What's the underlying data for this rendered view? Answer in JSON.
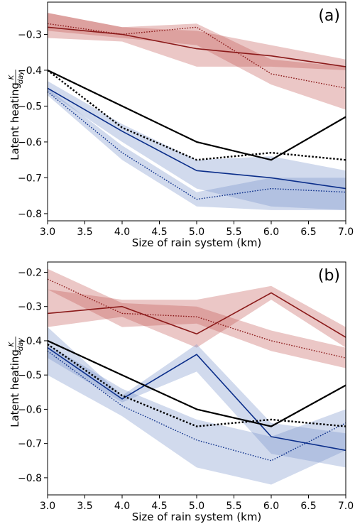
{
  "chart_data": [
    {
      "type": "line",
      "panel_label": "(a)",
      "xlabel": "Size of rain system (km)",
      "ylabel": "Latent heating",
      "ylabel_unit_num": "K",
      "ylabel_unit_den": "day",
      "xlim": [
        3.0,
        7.0
      ],
      "ylim": [
        -0.82,
        -0.21
      ],
      "xticks": [
        "3.0",
        "3.5",
        "4.0",
        "4.5",
        "5.0",
        "5.5",
        "6.0",
        "6.5",
        "7.0"
      ],
      "yticks": [
        -0.8,
        -0.7,
        -0.6,
        -0.5,
        -0.4,
        -0.3
      ],
      "ytick_labels": [
        "−0.8",
        "−0.7",
        "−0.6",
        "−0.5",
        "−0.4",
        "−0.3"
      ],
      "x": [
        3,
        4,
        5,
        6,
        7
      ],
      "series": [
        {
          "color": "#8b1a1a",
          "dash": "solid",
          "width": 1.6,
          "values": [
            -0.28,
            -0.3,
            -0.34,
            -0.36,
            -0.39
          ],
          "band_lower": [
            -0.31,
            -0.32,
            -0.39,
            -0.39,
            -0.4
          ],
          "band_upper": [
            -0.24,
            -0.28,
            -0.29,
            -0.33,
            -0.37
          ],
          "band_color": "#c0504d"
        },
        {
          "color": "#8b1a1a",
          "dash": "dotted",
          "width": 1.4,
          "values": [
            -0.27,
            -0.3,
            -0.28,
            -0.41,
            -0.45
          ],
          "band_lower": [
            -0.29,
            -0.31,
            -0.33,
            -0.44,
            -0.51
          ],
          "band_upper": [
            -0.24,
            -0.28,
            -0.27,
            -0.37,
            -0.39
          ],
          "band_color": "#c0504d"
        },
        {
          "color": "#0b2e8a",
          "dash": "solid",
          "width": 1.6,
          "values": [
            -0.45,
            -0.57,
            -0.68,
            -0.7,
            -0.73
          ],
          "band_lower": [
            -0.46,
            -0.6,
            -0.73,
            -0.78,
            -0.79
          ],
          "band_upper": [
            -0.43,
            -0.55,
            -0.65,
            -0.64,
            -0.68
          ],
          "band_color": "#6f8cc7"
        },
        {
          "color": "#0b2e8a",
          "dash": "dotted",
          "width": 1.4,
          "values": [
            -0.46,
            -0.63,
            -0.76,
            -0.73,
            -0.74
          ],
          "band_lower": [
            -0.47,
            -0.65,
            -0.78,
            -0.79,
            -0.79
          ],
          "band_upper": [
            -0.45,
            -0.61,
            -0.74,
            -0.7,
            -0.7
          ],
          "band_color": "#6f8cc7"
        },
        {
          "color": "#000000",
          "dash": "solid",
          "width": 2.2,
          "values": [
            -0.4,
            -0.5,
            -0.6,
            -0.65,
            -0.53
          ]
        },
        {
          "color": "#000000",
          "dash": "dotted",
          "width": 2.4,
          "values": [
            -0.4,
            -0.56,
            -0.65,
            -0.63,
            -0.65
          ]
        }
      ]
    },
    {
      "type": "line",
      "panel_label": "(b)",
      "xlabel": "Size of rain system (km)",
      "ylabel": "Latent heating",
      "ylabel_unit_num": "K",
      "ylabel_unit_den": "day",
      "xlim": [
        3.0,
        7.0
      ],
      "ylim": [
        -0.85,
        -0.17
      ],
      "xticks": [
        "3.0",
        "3.5",
        "4.0",
        "4.5",
        "5.0",
        "5.5",
        "6.0",
        "6.5",
        "7.0"
      ],
      "yticks": [
        -0.8,
        -0.7,
        -0.6,
        -0.5,
        -0.4,
        -0.3,
        -0.2
      ],
      "ytick_labels": [
        "−0.8",
        "−0.7",
        "−0.6",
        "−0.5",
        "−0.4",
        "−0.3",
        "−0.2"
      ],
      "x": [
        3,
        4,
        5,
        6,
        7
      ],
      "series": [
        {
          "color": "#8b1a1a",
          "dash": "solid",
          "width": 1.6,
          "values": [
            -0.32,
            -0.3,
            -0.38,
            -0.26,
            -0.39
          ],
          "band_lower": [
            -0.36,
            -0.33,
            -0.42,
            -0.28,
            -0.42
          ],
          "band_upper": [
            -0.25,
            -0.28,
            -0.28,
            -0.24,
            -0.36
          ],
          "band_color": "#c0504d"
        },
        {
          "color": "#8b1a1a",
          "dash": "dotted",
          "width": 1.4,
          "values": [
            -0.22,
            -0.32,
            -0.33,
            -0.4,
            -0.45
          ],
          "band_lower": [
            -0.25,
            -0.36,
            -0.35,
            -0.43,
            -0.48
          ],
          "band_upper": [
            -0.19,
            -0.29,
            -0.3,
            -0.37,
            -0.42
          ],
          "band_color": "#c0504d"
        },
        {
          "color": "#0b2e8a",
          "dash": "solid",
          "width": 1.6,
          "values": [
            -0.42,
            -0.57,
            -0.44,
            -0.68,
            -0.72
          ],
          "band_lower": [
            -0.45,
            -0.58,
            -0.49,
            -0.73,
            -0.77
          ],
          "band_upper": [
            -0.36,
            -0.56,
            -0.41,
            -0.64,
            -0.67
          ],
          "band_color": "#6f8cc7"
        },
        {
          "color": "#0b2e8a",
          "dash": "dotted",
          "width": 1.4,
          "values": [
            -0.43,
            -0.59,
            -0.69,
            -0.75,
            -0.64
          ],
          "band_lower": [
            -0.5,
            -0.62,
            -0.77,
            -0.82,
            -0.72
          ],
          "band_upper": [
            -0.41,
            -0.54,
            -0.63,
            -0.68,
            -0.6
          ],
          "band_color": "#6f8cc7"
        },
        {
          "color": "#000000",
          "dash": "solid",
          "width": 2.2,
          "values": [
            -0.4,
            -0.5,
            -0.6,
            -0.65,
            -0.53
          ]
        },
        {
          "color": "#000000",
          "dash": "dotted",
          "width": 2.4,
          "values": [
            -0.41,
            -0.56,
            -0.65,
            -0.63,
            -0.65
          ]
        }
      ]
    }
  ]
}
